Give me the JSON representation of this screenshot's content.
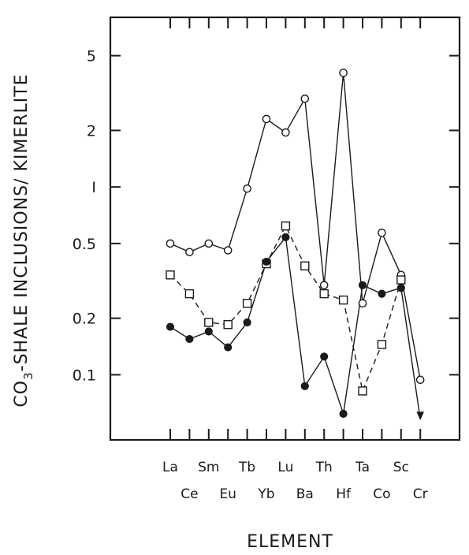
{
  "chart_data": {
    "type": "line",
    "title": "",
    "xlabel": "ELEMENT",
    "ylabel_main": "CO",
    "ylabel_sub": "3",
    "ylabel_rest": "-SHALE INCLUSIONS/ KIMERLITE",
    "yscale": "log",
    "ylim": [
      0.045,
      8
    ],
    "yticks": [
      {
        "value": 5,
        "label": "5"
      },
      {
        "value": 2,
        "label": "2"
      },
      {
        "value": 1,
        "label": "I"
      },
      {
        "value": 0.5,
        "label": "0.5"
      },
      {
        "value": 0.2,
        "label": "0.2"
      },
      {
        "value": 0.1,
        "label": "0.1"
      }
    ],
    "categories": [
      "La",
      "Ce",
      "Sm",
      "Eu",
      "Tb",
      "Yb",
      "Lu",
      "Ba",
      "Th",
      "Hf",
      "Ta",
      "Co",
      "Sc",
      "Cr"
    ],
    "legend": "none",
    "grid": false,
    "series": [
      {
        "marker": "open-circle",
        "line": "solid",
        "values": [
          0.5,
          0.45,
          0.5,
          0.46,
          0.98,
          2.3,
          1.95,
          2.95,
          0.3,
          4.05,
          0.24,
          0.57,
          0.34,
          0.094
        ],
        "arrow_end": false
      },
      {
        "marker": "open-square",
        "line": "dashed",
        "values": [
          0.34,
          0.27,
          0.19,
          0.185,
          0.24,
          0.39,
          0.62,
          0.38,
          0.27,
          0.25,
          0.082,
          0.145,
          0.32,
          null
        ],
        "arrow_end": false
      },
      {
        "marker": "filled-circle",
        "line": "solid",
        "values": [
          0.18,
          0.155,
          0.17,
          0.14,
          0.19,
          0.4,
          0.54,
          0.087,
          0.125,
          0.062,
          0.3,
          0.27,
          0.29,
          0.058
        ],
        "arrow_end": true
      }
    ]
  }
}
